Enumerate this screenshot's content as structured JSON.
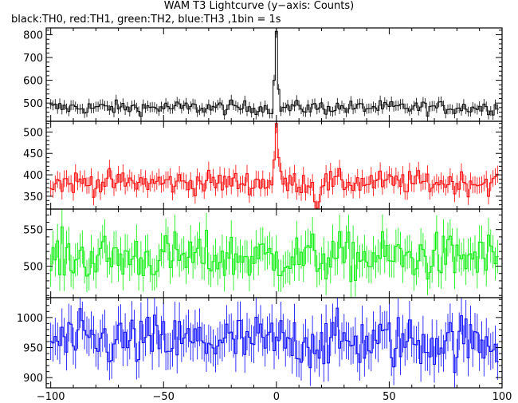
{
  "chart_data": {
    "type": "line",
    "title": "WAM T3 Lightcurve (y−axis: Counts)",
    "subtitle": "black:TH0, red:TH1, green:TH2, blue:TH3 ,1bin = 1s",
    "x_range": [
      -102,
      100
    ],
    "x_ticks": [
      -100,
      -50,
      0,
      50,
      100
    ],
    "bin_width": 1,
    "panels": [
      {
        "name": "TH0",
        "color": "#000000",
        "ylim": [
          420,
          830
        ],
        "yticks": [
          500,
          600,
          700,
          800
        ],
        "baseline": 480,
        "noise": 20,
        "peak": [
          {
            "x": -1,
            "value": 600
          },
          {
            "x": 0,
            "value": 815
          },
          {
            "x": 1,
            "value": 560
          }
        ],
        "dip": null
      },
      {
        "name": "TH1",
        "color": "#ff0000",
        "ylim": [
          320,
          525
        ],
        "yticks": [
          350,
          400,
          450,
          500
        ],
        "baseline": 382,
        "noise": 18,
        "peak": [
          {
            "x": -1,
            "value": 435
          },
          {
            "x": 0,
            "value": 520
          },
          {
            "x": 1,
            "value": 440
          }
        ],
        "dip": {
          "x": 18,
          "value": 322
        }
      },
      {
        "name": "TH2",
        "color": "#00ee00",
        "ylim": [
          457,
          578
        ],
        "yticks": [
          500,
          550
        ],
        "baseline": 512,
        "noise": 22,
        "peak": [],
        "dip": null
      },
      {
        "name": "TH3",
        "color": "#0000ff",
        "ylim": [
          883,
          1033
        ],
        "yticks": [
          900,
          950,
          1000
        ],
        "baseline": 960,
        "noise": 30,
        "peak": [],
        "dip": null
      }
    ]
  }
}
